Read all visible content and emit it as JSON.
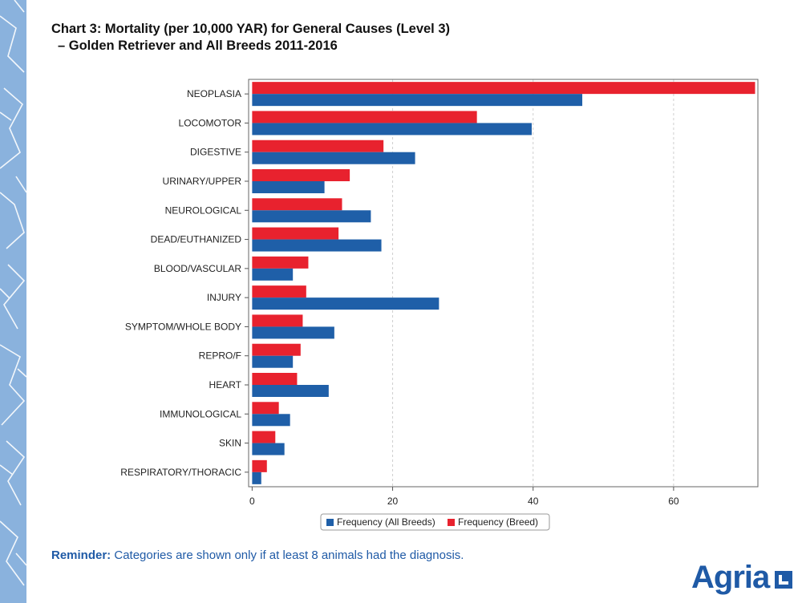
{
  "chart_data": {
    "type": "bar",
    "orientation": "horizontal",
    "title": "Chart 3: Mortality (per 10,000 YAR) for General Causes (Level 3)",
    "subtitle": "–  Golden Retriever and All Breeds 2011-2016",
    "categories": [
      "NEOPLASIA",
      "LOCOMOTOR",
      "DIGESTIVE",
      "URINARY/UPPER",
      "NEUROLOGICAL",
      "DEAD/EUTHANIZED",
      "BLOOD/VASCULAR",
      "INJURY",
      "SYMPTOM/WHOLE BODY",
      "REPRO/F",
      "HEART",
      "IMMUNOLOGICAL",
      "SKIN",
      "RESPIRATORY/THORACIC"
    ],
    "series": [
      {
        "name": "Frequency (Breed)",
        "color": "#e8222e",
        "values": [
          71.6,
          32.0,
          18.7,
          13.9,
          12.8,
          12.3,
          8.0,
          7.7,
          7.2,
          6.9,
          6.4,
          3.8,
          3.3,
          2.1
        ]
      },
      {
        "name": "Frequency (All Breeds)",
        "color": "#1f5fa8",
        "values": [
          47.0,
          39.8,
          23.2,
          10.3,
          16.9,
          18.4,
          5.8,
          26.6,
          11.7,
          5.8,
          10.9,
          5.4,
          4.6,
          1.3
        ]
      }
    ],
    "xlim": [
      -0.5,
      72
    ],
    "xticks": [
      0,
      20,
      40,
      60
    ],
    "grid": "vertical dashed",
    "legend": "bottom-center",
    "xlabel": "",
    "ylabel": ""
  },
  "footer": {
    "reminder_label": "Reminder:",
    "reminder_text": "Categories are shown only if at least 8 animals had the diagnosis."
  },
  "logo": {
    "text": "Agria"
  },
  "colors": {
    "accent": "#1f5aa6",
    "breed": "#e8222e",
    "all_breeds": "#1f5fa8"
  }
}
